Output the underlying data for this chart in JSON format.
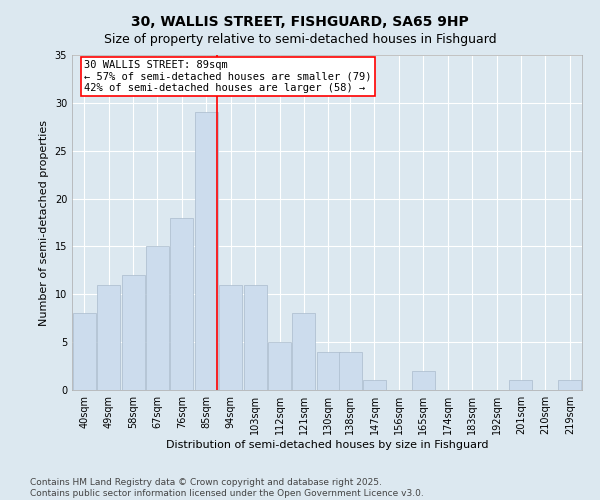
{
  "title": "30, WALLIS STREET, FISHGUARD, SA65 9HP",
  "subtitle": "Size of property relative to semi-detached houses in Fishguard",
  "xlabel": "Distribution of semi-detached houses by size in Fishguard",
  "ylabel": "Number of semi-detached properties",
  "bar_color": "#ccdced",
  "bar_edge_color": "#aabbcc",
  "background_color": "#dce8f0",
  "grid_color": "#ffffff",
  "vline_x": 89,
  "vline_color": "red",
  "annotation_title": "30 WALLIS STREET: 89sqm",
  "annotation_line1": "← 57% of semi-detached houses are smaller (79)",
  "annotation_line2": "42% of semi-detached houses are larger (58) →",
  "bin_centers": [
    40,
    49,
    58,
    67,
    76,
    85,
    94,
    103,
    112,
    121,
    130,
    138,
    147,
    156,
    165,
    174,
    183,
    192,
    201,
    210,
    219
  ],
  "bin_heights": [
    8,
    11,
    12,
    15,
    18,
    29,
    11,
    11,
    5,
    8,
    4,
    4,
    1,
    0,
    2,
    0,
    0,
    0,
    1,
    0,
    1
  ],
  "tick_labels": [
    "40sqm",
    "49sqm",
    "58sqm",
    "67sqm",
    "76sqm",
    "85sqm",
    "94sqm",
    "103sqm",
    "112sqm",
    "121sqm",
    "130sqm",
    "138sqm",
    "147sqm",
    "156sqm",
    "165sqm",
    "174sqm",
    "183sqm",
    "192sqm",
    "201sqm",
    "210sqm",
    "219sqm"
  ],
  "ylim": [
    0,
    35
  ],
  "yticks": [
    0,
    5,
    10,
    15,
    20,
    25,
    30,
    35
  ],
  "xlim": [
    35.5,
    223.5
  ],
  "footer": "Contains HM Land Registry data © Crown copyright and database right 2025.\nContains public sector information licensed under the Open Government Licence v3.0.",
  "title_fontsize": 10,
  "subtitle_fontsize": 9,
  "axis_label_fontsize": 8,
  "tick_fontsize": 7,
  "annotation_fontsize": 7.5,
  "footer_fontsize": 6.5
}
